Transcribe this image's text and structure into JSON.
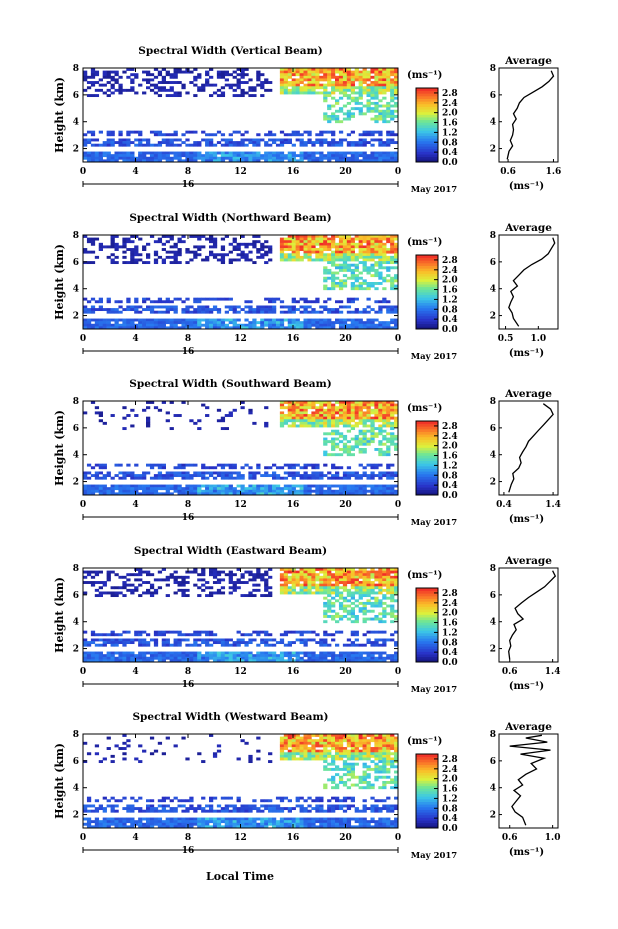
{
  "figure": {
    "x_axis_label": "Local Time"
  },
  "chart_data": [
    {
      "type": "heatmap",
      "title": "Spectral Width (Vertical Beam)",
      "ylabel": "Height (km)",
      "ylim": [
        1,
        8
      ],
      "yticks": [
        "2",
        "4",
        "6",
        "8"
      ],
      "xticks": [
        "0",
        "4",
        "8",
        "12",
        "16",
        "20",
        "0"
      ],
      "xlim": [
        0,
        24
      ],
      "date_marker": "16",
      "date_label": "May 2017",
      "colorbar": {
        "unit": "(ms⁻¹)",
        "ticks": [
          "0.0",
          "0.4",
          "0.8",
          "1.2",
          "1.6",
          "2.0",
          "2.4",
          "2.8"
        ],
        "range": [
          0,
          3.0
        ]
      },
      "average": {
        "title": "Average",
        "xlabel": "(ms⁻¹)",
        "xticks": [
          "0.6",
          "1.6"
        ],
        "xlim": [
          0.4,
          1.7
        ],
        "points": [
          [
            0.58,
            1.2
          ],
          [
            0.62,
            1.8
          ],
          [
            0.7,
            2.2
          ],
          [
            0.65,
            2.6
          ],
          [
            0.7,
            3.0
          ],
          [
            0.72,
            3.4
          ],
          [
            0.7,
            3.8
          ],
          [
            0.78,
            4.2
          ],
          [
            0.72,
            4.6
          ],
          [
            0.8,
            5.0
          ],
          [
            0.85,
            5.4
          ],
          [
            0.95,
            5.8
          ],
          [
            1.15,
            6.2
          ],
          [
            1.35,
            6.6
          ],
          [
            1.5,
            7.0
          ],
          [
            1.6,
            7.4
          ],
          [
            1.55,
            7.8
          ]
        ]
      }
    },
    {
      "type": "heatmap",
      "title": "Spectral Width (Northward Beam)",
      "ylabel": "Height (km)",
      "ylim": [
        1,
        8
      ],
      "yticks": [
        "2",
        "4",
        "6",
        "8"
      ],
      "xticks": [
        "0",
        "4",
        "8",
        "12",
        "16",
        "20",
        "0"
      ],
      "xlim": [
        0,
        24
      ],
      "date_marker": "16",
      "date_label": "May 2017",
      "colorbar": {
        "unit": "(ms⁻¹)",
        "ticks": [
          "0.0",
          "0.4",
          "0.8",
          "1.2",
          "1.6",
          "2.0",
          "2.4",
          "2.8"
        ],
        "range": [
          0,
          3.0
        ]
      },
      "average": {
        "title": "Average",
        "xlabel": "(ms⁻¹)",
        "xticks": [
          "0.5",
          "1.0"
        ],
        "xlim": [
          0.4,
          1.3
        ],
        "points": [
          [
            0.7,
            1.2
          ],
          [
            0.62,
            1.8
          ],
          [
            0.6,
            2.2
          ],
          [
            0.55,
            2.6
          ],
          [
            0.58,
            3.0
          ],
          [
            0.62,
            3.4
          ],
          [
            0.58,
            3.8
          ],
          [
            0.68,
            4.2
          ],
          [
            0.62,
            4.6
          ],
          [
            0.7,
            5.0
          ],
          [
            0.78,
            5.4
          ],
          [
            0.9,
            5.8
          ],
          [
            1.05,
            6.2
          ],
          [
            1.15,
            6.6
          ],
          [
            1.2,
            7.0
          ],
          [
            1.25,
            7.4
          ],
          [
            1.22,
            7.8
          ]
        ]
      }
    },
    {
      "type": "heatmap",
      "title": "Spectral Width (Southward Beam)",
      "ylabel": "Height (km)",
      "ylim": [
        1,
        8
      ],
      "yticks": [
        "2",
        "4",
        "6",
        "8"
      ],
      "xticks": [
        "0",
        "4",
        "8",
        "12",
        "16",
        "20",
        "0"
      ],
      "xlim": [
        0,
        24
      ],
      "date_marker": "16",
      "date_label": "May 2017",
      "colorbar": {
        "unit": "(ms⁻¹)",
        "ticks": [
          "0.0",
          "0.4",
          "0.8",
          "1.2",
          "1.6",
          "2.0",
          "2.4",
          "2.8"
        ],
        "range": [
          0,
          3.0
        ]
      },
      "average": {
        "title": "Average",
        "xlabel": "(ms⁻¹)",
        "xticks": [
          "0.4",
          "1.4"
        ],
        "xlim": [
          0.3,
          1.5
        ],
        "points": [
          [
            0.5,
            1.2
          ],
          [
            0.55,
            1.8
          ],
          [
            0.6,
            2.2
          ],
          [
            0.58,
            2.6
          ],
          [
            0.7,
            3.0
          ],
          [
            0.75,
            3.4
          ],
          [
            0.72,
            3.8
          ],
          [
            0.78,
            4.2
          ],
          [
            0.85,
            4.6
          ],
          [
            0.9,
            5.0
          ],
          [
            1.0,
            5.4
          ],
          [
            1.1,
            5.8
          ],
          [
            1.2,
            6.2
          ],
          [
            1.3,
            6.6
          ],
          [
            1.4,
            7.0
          ],
          [
            1.35,
            7.4
          ],
          [
            1.2,
            7.8
          ]
        ]
      }
    },
    {
      "type": "heatmap",
      "title": "Spectral Width (Eastward Beam)",
      "ylabel": "Height (km)",
      "ylim": [
        1,
        8
      ],
      "yticks": [
        "2",
        "4",
        "6",
        "8"
      ],
      "xticks": [
        "0",
        "4",
        "8",
        "12",
        "16",
        "20",
        "0"
      ],
      "xlim": [
        0,
        24
      ],
      "date_marker": "16",
      "date_label": "May 2017",
      "colorbar": {
        "unit": "(ms⁻¹)",
        "ticks": [
          "0.0",
          "0.4",
          "0.8",
          "1.2",
          "1.6",
          "2.0",
          "2.4",
          "2.8"
        ],
        "range": [
          0,
          3.0
        ]
      },
      "average": {
        "title": "Average",
        "xlabel": "(ms⁻¹)",
        "xticks": [
          "0.6",
          "1.4"
        ],
        "xlim": [
          0.4,
          1.5
        ],
        "points": [
          [
            0.6,
            1.2
          ],
          [
            0.58,
            1.8
          ],
          [
            0.62,
            2.2
          ],
          [
            0.6,
            2.6
          ],
          [
            0.65,
            3.0
          ],
          [
            0.72,
            3.4
          ],
          [
            0.68,
            3.8
          ],
          [
            0.85,
            4.2
          ],
          [
            0.75,
            4.6
          ],
          [
            0.7,
            5.0
          ],
          [
            0.82,
            5.4
          ],
          [
            0.95,
            5.8
          ],
          [
            1.1,
            6.2
          ],
          [
            1.25,
            6.6
          ],
          [
            1.35,
            7.0
          ],
          [
            1.45,
            7.4
          ],
          [
            1.4,
            7.8
          ]
        ]
      }
    },
    {
      "type": "heatmap",
      "title": "Spectral Width (Westward Beam)",
      "ylabel": "Height (km)",
      "ylim": [
        1,
        8
      ],
      "yticks": [
        "2",
        "4",
        "6",
        "8"
      ],
      "xticks": [
        "0",
        "4",
        "8",
        "12",
        "16",
        "20",
        "0"
      ],
      "xlim": [
        0,
        24
      ],
      "date_marker": "16",
      "date_label": "May 2017",
      "colorbar": {
        "unit": "(ms⁻¹)",
        "ticks": [
          "0.0",
          "0.4",
          "0.8",
          "1.2",
          "1.6",
          "2.0",
          "2.4",
          "2.8"
        ],
        "range": [
          0,
          3.0
        ]
      },
      "average": {
        "title": "Average",
        "xlabel": "(ms⁻¹)",
        "xticks": [
          "0.6",
          "1.0"
        ],
        "xlim": [
          0.5,
          1.05
        ],
        "points": [
          [
            0.75,
            1.2
          ],
          [
            0.72,
            1.8
          ],
          [
            0.65,
            2.2
          ],
          [
            0.62,
            2.6
          ],
          [
            0.66,
            3.0
          ],
          [
            0.7,
            3.4
          ],
          [
            0.64,
            3.8
          ],
          [
            0.72,
            4.2
          ],
          [
            0.68,
            4.6
          ],
          [
            0.75,
            5.0
          ],
          [
            0.85,
            5.4
          ],
          [
            0.8,
            5.8
          ],
          [
            0.92,
            6.2
          ],
          [
            0.7,
            6.5
          ],
          [
            0.98,
            6.8
          ],
          [
            0.6,
            7.1
          ],
          [
            0.95,
            7.4
          ],
          [
            0.75,
            7.7
          ],
          [
            0.9,
            7.9
          ]
        ]
      }
    }
  ]
}
